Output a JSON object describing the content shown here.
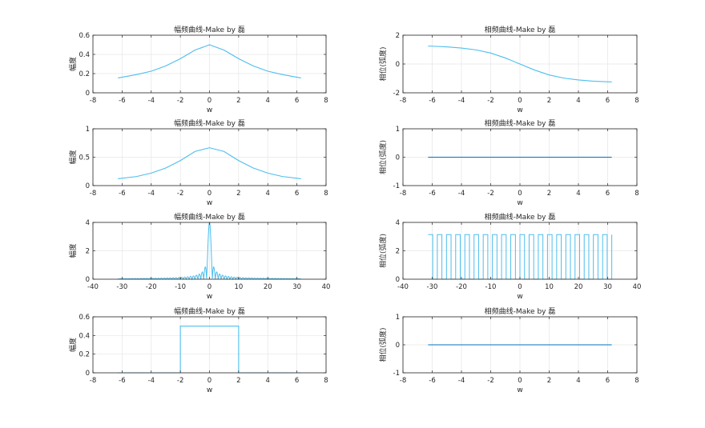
{
  "chart_data": [
    {
      "type": "line",
      "title": "幅频曲线-Make by 磊",
      "xlabel": "w",
      "ylabel": "幅度",
      "xlim": [
        -8,
        8
      ],
      "ylim": [
        0,
        0.6
      ],
      "xticks": [
        -8,
        -6,
        -4,
        -2,
        0,
        2,
        4,
        6,
        8
      ],
      "yticks": [
        0,
        0.2,
        0.4,
        0.6
      ],
      "x_range": [
        -6.28,
        6.28
      ],
      "grid": true,
      "color": "#4DBEEE",
      "series": [
        {
          "x": [
            -6.28,
            -5,
            -4,
            -3,
            -2,
            -1,
            0,
            1,
            2,
            3,
            4,
            5,
            6.28
          ],
          "y": [
            0.155,
            0.19,
            0.225,
            0.28,
            0.355,
            0.445,
            0.5,
            0.445,
            0.355,
            0.28,
            0.225,
            0.19,
            0.155
          ]
        }
      ]
    },
    {
      "type": "line",
      "title": "相频曲线-Make by 磊",
      "xlabel": "w",
      "ylabel": "相位(弧度)",
      "xlim": [
        -8,
        8
      ],
      "ylim": [
        -2,
        2
      ],
      "xticks": [
        -8,
        -6,
        -4,
        -2,
        0,
        2,
        4,
        6,
        8
      ],
      "yticks": [
        -2,
        0,
        2
      ],
      "x_range": [
        -6.28,
        6.28
      ],
      "grid": true,
      "color": "#4DBEEE",
      "series": [
        {
          "x": [
            -6.28,
            -5,
            -4,
            -3,
            -2,
            -1,
            0,
            1,
            2,
            3,
            4,
            5,
            6.28
          ],
          "y": [
            1.25,
            1.19,
            1.11,
            0.98,
            0.76,
            0.42,
            0,
            -0.42,
            -0.76,
            -0.98,
            -1.11,
            -1.19,
            -1.25
          ]
        }
      ]
    },
    {
      "type": "line",
      "title": "幅频曲线-Make by 磊",
      "xlabel": "w",
      "ylabel": "幅度",
      "xlim": [
        -8,
        8
      ],
      "ylim": [
        0,
        1
      ],
      "xticks": [
        -8,
        -6,
        -4,
        -2,
        0,
        2,
        4,
        6,
        8
      ],
      "yticks": [
        0,
        0.5,
        1
      ],
      "x_range": [
        -6.28,
        6.28
      ],
      "grid": true,
      "color": "#4DBEEE",
      "series": [
        {
          "x": [
            -6.28,
            -5,
            -4,
            -3,
            -2,
            -1,
            0,
            1,
            2,
            3,
            4,
            5,
            6.28
          ],
          "y": [
            0.12,
            0.16,
            0.22,
            0.31,
            0.44,
            0.6,
            0.667,
            0.6,
            0.44,
            0.31,
            0.22,
            0.16,
            0.12
          ]
        }
      ]
    },
    {
      "type": "line",
      "title": "相频曲线-Make by 磊",
      "xlabel": "w",
      "ylabel": "相位(弧度)",
      "xlim": [
        -8,
        8
      ],
      "ylim": [
        -1,
        1
      ],
      "xticks": [
        -8,
        -6,
        -4,
        -2,
        0,
        2,
        4,
        6,
        8
      ],
      "yticks": [
        -1,
        0,
        1
      ],
      "x_range": [
        -6.28,
        6.28
      ],
      "grid": true,
      "color": "#0072BD",
      "series": [
        {
          "x": [
            -6.28,
            6.28
          ],
          "y": [
            0,
            0
          ]
        }
      ]
    },
    {
      "type": "line",
      "title": "幅频曲线-Make by 磊",
      "xlabel": "w",
      "ylabel": "幅度",
      "xlim": [
        -40,
        40
      ],
      "ylim": [
        0,
        4
      ],
      "xticks": [
        -40,
        -30,
        -20,
        -10,
        0,
        10,
        20,
        30,
        40
      ],
      "yticks": [
        0,
        2,
        4
      ],
      "x_range": [
        -31.4,
        31.4
      ],
      "grid": true,
      "color": "#4DBEEE",
      "peak": 4,
      "series": []
    },
    {
      "type": "line",
      "title": "相频曲线-Make by 磊",
      "xlabel": "w",
      "ylabel": "相位(弧度)",
      "xlim": [
        -40,
        40
      ],
      "ylim": [
        0,
        4
      ],
      "xticks": [
        -40,
        -30,
        -20,
        -10,
        0,
        10,
        20,
        30,
        40
      ],
      "yticks": [
        0,
        2,
        4
      ],
      "x_range": [
        -31.4,
        31.4
      ],
      "grid": true,
      "color": "#4DBEEE",
      "square_wave_high": 3.14159,
      "series": []
    },
    {
      "type": "line",
      "title": "幅频曲线-Make by 磊",
      "xlabel": "w",
      "ylabel": "幅度",
      "xlim": [
        -8,
        8
      ],
      "ylim": [
        0,
        0.6
      ],
      "xticks": [
        -8,
        -6,
        -4,
        -2,
        0,
        2,
        4,
        6,
        8
      ],
      "yticks": [
        0,
        0.2,
        0.4,
        0.6
      ],
      "x_range": [
        -6.28,
        6.28
      ],
      "grid": true,
      "color": "#4DBEEE",
      "series": [
        {
          "x": [
            -6.28,
            -2,
            -2,
            2,
            2,
            6.28
          ],
          "y": [
            0,
            0,
            0.5,
            0.5,
            0,
            0
          ]
        }
      ]
    },
    {
      "type": "line",
      "title": "相频曲线-Make by 磊",
      "xlabel": "w",
      "ylabel": "相位(弧度)",
      "xlim": [
        -8,
        8
      ],
      "ylim": [
        -1,
        1
      ],
      "xticks": [
        -8,
        -6,
        -4,
        -2,
        0,
        2,
        4,
        6,
        8
      ],
      "yticks": [
        -1,
        0,
        1
      ],
      "x_range": [
        -6.28,
        6.28
      ],
      "grid": true,
      "color": "#0072BD",
      "series": [
        {
          "x": [
            -6.28,
            6.28
          ],
          "y": [
            0,
            0
          ]
        }
      ]
    }
  ]
}
